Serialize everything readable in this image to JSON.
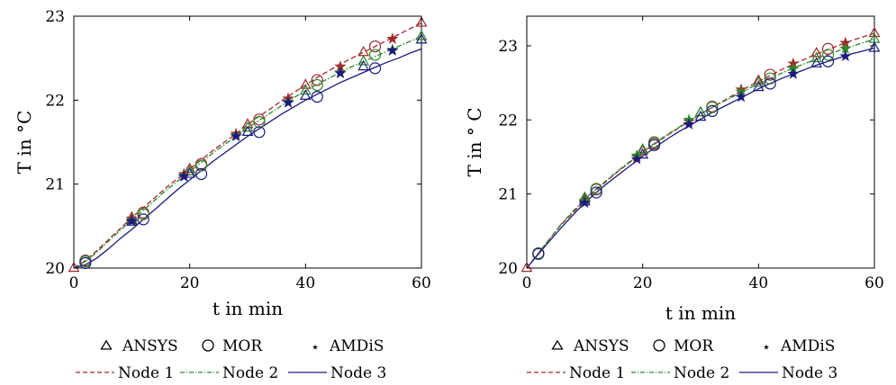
{
  "legend": {
    "markers": [
      {
        "label": "ANSYS",
        "symbol": "triangle-icon"
      },
      {
        "label": "MOR",
        "symbol": "circle-icon"
      },
      {
        "label": "AMDiS",
        "symbol": "star-icon"
      }
    ],
    "lines": [
      {
        "label": "Node 1",
        "color": "#a0282d",
        "dash": "dashed"
      },
      {
        "label": "Node 2",
        "color": "#2a8a2a",
        "dash": "dash-dot"
      },
      {
        "label": "Node 3",
        "color": "#1a1a80",
        "dash": "solid"
      }
    ]
  },
  "chart_data": [
    {
      "type": "line",
      "xlabel": "t in min",
      "ylabel": "T in °C",
      "xlim": [
        0,
        60
      ],
      "ylim": [
        20,
        23
      ],
      "xticks": [
        0,
        20,
        40,
        60
      ],
      "yticks": [
        20,
        21,
        22,
        23
      ],
      "grid": false,
      "series": [
        {
          "name": "Node 1",
          "color": "#a0282d",
          "dash": "dashed",
          "x": [
            0,
            2,
            4,
            6,
            8,
            10,
            12,
            14,
            16,
            18,
            20,
            22,
            24,
            26,
            28,
            30,
            32,
            34,
            36,
            38,
            40,
            42,
            44,
            46,
            48,
            50,
            52,
            54,
            56,
            58,
            60
          ],
          "y": [
            20.0,
            20.09,
            20.21,
            20.34,
            20.47,
            20.6,
            20.72,
            20.84,
            20.96,
            21.07,
            21.18,
            21.29,
            21.4,
            21.5,
            21.6,
            21.71,
            21.81,
            21.9,
            22.0,
            22.09,
            22.18,
            22.27,
            22.35,
            22.43,
            22.5,
            22.57,
            22.64,
            22.71,
            22.78,
            22.85,
            22.92
          ]
        },
        {
          "name": "Node 2",
          "color": "#2a8a2a",
          "dash": "dash-dot",
          "x": [
            0,
            2,
            4,
            6,
            8,
            10,
            12,
            14,
            16,
            18,
            20,
            22,
            24,
            26,
            28,
            30,
            32,
            34,
            36,
            38,
            40,
            42,
            44,
            46,
            48,
            50,
            52,
            54,
            56,
            58,
            60
          ],
          "y": [
            20.0,
            20.08,
            20.19,
            20.32,
            20.45,
            20.57,
            20.69,
            20.81,
            20.93,
            21.04,
            21.15,
            21.26,
            21.37,
            21.47,
            21.57,
            21.67,
            21.76,
            21.85,
            21.94,
            22.03,
            22.11,
            22.19,
            22.26,
            22.33,
            22.4,
            22.46,
            22.52,
            22.58,
            22.64,
            22.7,
            22.76
          ]
        },
        {
          "name": "Node 3",
          "color": "#1a1a80",
          "dash": "solid",
          "x": [
            0,
            2,
            4,
            6,
            8,
            10,
            12,
            14,
            16,
            18,
            20,
            22,
            24,
            26,
            28,
            30,
            32,
            34,
            36,
            38,
            40,
            42,
            44,
            46,
            48,
            50,
            52,
            54,
            56,
            58,
            60
          ],
          "y": [
            20.0,
            20.04,
            20.12,
            20.23,
            20.35,
            20.46,
            20.58,
            20.7,
            20.82,
            20.94,
            21.05,
            21.16,
            21.27,
            21.37,
            21.47,
            21.57,
            21.66,
            21.75,
            21.84,
            21.92,
            22.0,
            22.07,
            22.14,
            22.21,
            22.27,
            22.33,
            22.39,
            22.45,
            22.5,
            22.56,
            22.61
          ]
        }
      ],
      "markers": [
        {
          "name": "ANSYS",
          "symbol": "triangle",
          "x": [
            0,
            10,
            20,
            30,
            40,
            50,
            60
          ],
          "y": [
            20.0,
            20.6,
            21.18,
            21.71,
            22.18,
            22.57,
            22.92
          ],
          "color": "#a0282d"
        },
        {
          "name": "ANSYS",
          "symbol": "triangle",
          "x": [
            10,
            20,
            30,
            40,
            50,
            60
          ],
          "y": [
            20.57,
            21.15,
            21.67,
            22.11,
            22.46,
            22.76
          ],
          "color": "#2a8a2a"
        },
        {
          "name": "ANSYS",
          "symbol": "triangle",
          "x": [
            10,
            20,
            30,
            40,
            50,
            60
          ],
          "y": [
            20.55,
            21.12,
            21.62,
            22.05,
            22.4,
            22.72
          ],
          "color": "#1a1a80"
        },
        {
          "name": "MOR",
          "symbol": "circle",
          "x": [
            2,
            12,
            22,
            32,
            42,
            52
          ],
          "y": [
            20.09,
            20.66,
            21.24,
            21.77,
            22.24,
            22.64
          ],
          "color": "#a0282d"
        },
        {
          "name": "MOR",
          "symbol": "circle",
          "x": [
            2,
            12,
            22,
            32,
            42,
            52
          ],
          "y": [
            20.08,
            20.64,
            21.22,
            21.74,
            22.18,
            22.54
          ],
          "color": "#2a8a2a"
        },
        {
          "name": "MOR",
          "symbol": "circle",
          "x": [
            2,
            12,
            22,
            32,
            42,
            52
          ],
          "y": [
            20.06,
            20.58,
            21.12,
            21.62,
            22.04,
            22.38
          ],
          "color": "#1a1a80"
        },
        {
          "name": "AMDiS",
          "symbol": "star",
          "x": [
            10,
            19,
            28,
            37,
            46,
            55
          ],
          "y": [
            20.59,
            21.12,
            21.6,
            22.02,
            22.4,
            22.73
          ],
          "color": "#a0282d"
        },
        {
          "name": "AMDiS",
          "symbol": "star",
          "x": [
            10,
            19,
            28,
            37,
            46,
            55
          ],
          "y": [
            20.57,
            21.1,
            21.58,
            21.98,
            22.33,
            22.6
          ],
          "color": "#2a8a2a"
        },
        {
          "name": "AMDiS",
          "symbol": "star",
          "x": [
            10,
            19,
            28,
            37,
            46,
            55
          ],
          "y": [
            20.56,
            21.09,
            21.57,
            21.97,
            22.32,
            22.59
          ],
          "color": "#1a1a80"
        }
      ]
    },
    {
      "type": "line",
      "xlabel": "t in min",
      "ylabel": "T in ° C",
      "xlim": [
        0,
        60
      ],
      "ylim": [
        20,
        23.4
      ],
      "xticks": [
        0,
        20,
        40,
        60
      ],
      "yticks": [
        20,
        21,
        22,
        23
      ],
      "grid": false,
      "series": [
        {
          "name": "Node 1",
          "color": "#a0282d",
          "dash": "dashed",
          "x": [
            0,
            2,
            4,
            6,
            8,
            10,
            12,
            14,
            16,
            18,
            20,
            22,
            24,
            26,
            28,
            30,
            32,
            34,
            36,
            38,
            40,
            42,
            44,
            46,
            48,
            50,
            52,
            54,
            56,
            58,
            60
          ],
          "y": [
            20.0,
            20.2,
            20.4,
            20.59,
            20.75,
            20.91,
            21.05,
            21.19,
            21.32,
            21.44,
            21.56,
            21.67,
            21.78,
            21.88,
            21.98,
            22.08,
            22.17,
            22.26,
            22.35,
            22.44,
            22.52,
            22.6,
            22.68,
            22.75,
            22.82,
            22.89,
            22.95,
            23.01,
            23.07,
            23.12,
            23.17
          ]
        },
        {
          "name": "Node 2",
          "color": "#2a8a2a",
          "dash": "dash-dot",
          "x": [
            0,
            2,
            4,
            6,
            8,
            10,
            12,
            14,
            16,
            18,
            20,
            22,
            24,
            26,
            28,
            30,
            32,
            34,
            36,
            38,
            40,
            42,
            44,
            46,
            48,
            50,
            52,
            54,
            56,
            58,
            60
          ],
          "y": [
            20.0,
            20.2,
            20.4,
            20.6,
            20.77,
            20.93,
            21.07,
            21.2,
            21.33,
            21.45,
            21.57,
            21.68,
            21.79,
            21.89,
            21.99,
            22.08,
            22.17,
            22.25,
            22.33,
            22.41,
            22.49,
            22.56,
            22.63,
            22.7,
            22.76,
            22.82,
            22.88,
            22.94,
            22.99,
            23.04,
            23.09
          ]
        },
        {
          "name": "Node 3",
          "color": "#1a1a80",
          "dash": "solid",
          "x": [
            0,
            2,
            4,
            6,
            8,
            10,
            12,
            14,
            16,
            18,
            20,
            22,
            24,
            26,
            28,
            30,
            32,
            34,
            36,
            38,
            40,
            42,
            44,
            46,
            48,
            50,
            52,
            54,
            56,
            58,
            60
          ],
          "y": [
            20.0,
            20.19,
            20.37,
            20.55,
            20.72,
            20.88,
            21.02,
            21.15,
            21.27,
            21.39,
            21.51,
            21.62,
            21.73,
            21.83,
            21.92,
            22.01,
            22.1,
            22.18,
            22.26,
            22.34,
            22.42,
            22.49,
            22.56,
            22.62,
            22.68,
            22.74,
            22.79,
            22.84,
            22.89,
            22.93,
            22.97
          ]
        }
      ],
      "markers": [
        {
          "name": "ANSYS",
          "symbol": "triangle",
          "x": [
            0,
            10,
            20,
            30,
            40,
            50,
            60
          ],
          "y": [
            20.0,
            20.93,
            21.58,
            22.1,
            22.53,
            22.9,
            23.17
          ],
          "color": "#a0282d"
        },
        {
          "name": "ANSYS",
          "symbol": "triangle",
          "x": [
            10,
            20,
            30,
            40,
            50,
            60
          ],
          "y": [
            20.95,
            21.6,
            22.1,
            22.5,
            22.83,
            23.09
          ],
          "color": "#2a8a2a"
        },
        {
          "name": "ANSYS",
          "symbol": "triangle",
          "x": [
            10,
            20,
            30,
            40,
            50,
            60
          ],
          "y": [
            20.9,
            21.53,
            22.04,
            22.44,
            22.76,
            22.97
          ],
          "color": "#1a1a80"
        },
        {
          "name": "MOR",
          "symbol": "circle",
          "x": [
            2,
            12,
            22,
            32,
            42,
            52
          ],
          "y": [
            20.2,
            21.06,
            21.68,
            22.18,
            22.61,
            22.96
          ],
          "color": "#a0282d"
        },
        {
          "name": "MOR",
          "symbol": "circle",
          "x": [
            2,
            12,
            22,
            32,
            42,
            52
          ],
          "y": [
            20.2,
            21.07,
            21.7,
            22.17,
            22.56,
            22.88
          ],
          "color": "#2a8a2a"
        },
        {
          "name": "MOR",
          "symbol": "circle",
          "x": [
            2,
            12,
            22,
            32,
            42,
            52
          ],
          "y": [
            20.19,
            21.02,
            21.66,
            22.12,
            22.49,
            22.79
          ],
          "color": "#1a1a80"
        },
        {
          "name": "AMDiS",
          "symbol": "star",
          "x": [
            10,
            19,
            28,
            37,
            46,
            55
          ],
          "y": [
            20.9,
            21.5,
            21.98,
            22.41,
            22.76,
            23.04
          ],
          "color": "#a0282d"
        },
        {
          "name": "AMDiS",
          "symbol": "star",
          "x": [
            10,
            19,
            28,
            37,
            46,
            55
          ],
          "y": [
            20.91,
            21.52,
            22.0,
            22.38,
            22.69,
            22.96
          ],
          "color": "#2a8a2a"
        },
        {
          "name": "AMDiS",
          "symbol": "star",
          "x": [
            10,
            19,
            28,
            37,
            46,
            55
          ],
          "y": [
            20.88,
            21.47,
            21.94,
            22.31,
            22.62,
            22.86
          ],
          "color": "#1a1a80"
        }
      ]
    }
  ]
}
